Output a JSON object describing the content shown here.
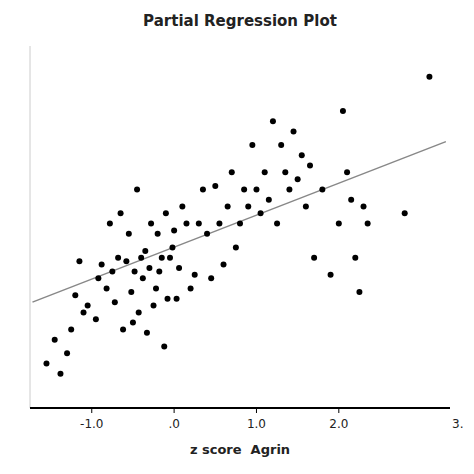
{
  "chart_data": {
    "type": "scatter",
    "title": "Partial Regression Plot",
    "x_label": "z score  Agrin",
    "xlim": [
      -1.75,
      3.35
    ],
    "ylim": [
      -4.8,
      5.8
    ],
    "xticks": [
      {
        "value": -1.0,
        "label": "-1.0"
      },
      {
        "value": 0.0,
        "label": ".0"
      },
      {
        "value": 1.0,
        "label": "1.0"
      },
      {
        "value": 2.0,
        "label": "2.0"
      }
    ],
    "tick_labels": "x",
    "grid": false,
    "annotations": [
      {
        "text": "3."
      }
    ],
    "series": [
      {
        "type": "scatter",
        "color": "#000000",
        "x": [
          -1.55,
          -1.45,
          -1.38,
          -1.3,
          -1.25,
          -1.2,
          -1.15,
          -1.1,
          -1.05,
          -0.95,
          -0.92,
          -0.88,
          -0.82,
          -0.78,
          -0.75,
          -0.72,
          -0.68,
          -0.65,
          -0.62,
          -0.58,
          -0.55,
          -0.52,
          -0.5,
          -0.48,
          -0.45,
          -0.43,
          -0.4,
          -0.38,
          -0.35,
          -0.33,
          -0.3,
          -0.28,
          -0.25,
          -0.22,
          -0.2,
          -0.18,
          -0.15,
          -0.12,
          -0.1,
          -0.08,
          -0.05,
          -0.02,
          0.0,
          0.03,
          0.06,
          0.1,
          0.15,
          0.2,
          0.25,
          0.3,
          0.35,
          0.4,
          0.45,
          0.5,
          0.55,
          0.6,
          0.65,
          0.7,
          0.75,
          0.8,
          0.85,
          0.9,
          0.95,
          1.0,
          1.05,
          1.1,
          1.15,
          1.2,
          1.25,
          1.3,
          1.35,
          1.4,
          1.45,
          1.5,
          1.55,
          1.6,
          1.65,
          1.7,
          1.8,
          1.9,
          2.0,
          2.05,
          2.1,
          2.15,
          2.2,
          2.25,
          2.3,
          2.35,
          2.8,
          3.1
        ],
        "values": [
          -3.5,
          -2.8,
          -3.8,
          -3.2,
          -2.5,
          -1.5,
          -0.5,
          -2.0,
          -1.8,
          -2.2,
          -1.0,
          -0.6,
          -1.3,
          0.6,
          -0.8,
          -1.7,
          -0.4,
          0.9,
          -2.5,
          -0.5,
          0.3,
          -1.4,
          -2.3,
          -0.8,
          1.6,
          -2.0,
          -0.4,
          -1.0,
          -0.2,
          -2.6,
          -0.7,
          0.6,
          -1.8,
          -1.3,
          0.3,
          -0.8,
          -0.4,
          -3.0,
          0.9,
          -1.6,
          -0.4,
          -0.1,
          0.4,
          -1.6,
          -0.7,
          1.1,
          0.6,
          -1.3,
          -0.9,
          0.6,
          1.6,
          0.3,
          -1.0,
          1.7,
          0.6,
          -0.6,
          1.1,
          2.1,
          -0.1,
          0.6,
          1.6,
          1.1,
          2.9,
          1.6,
          0.9,
          2.1,
          1.3,
          3.6,
          0.6,
          2.9,
          2.1,
          1.6,
          3.3,
          1.9,
          2.6,
          1.1,
          2.3,
          -0.4,
          1.6,
          -0.9,
          0.6,
          3.9,
          2.1,
          1.3,
          -0.4,
          -1.4,
          1.1,
          0.6,
          0.9,
          4.9
        ]
      },
      {
        "type": "line",
        "color": "#888888",
        "x": [
          -1.72,
          3.3
        ],
        "values": [
          -1.7,
          3.0
        ]
      }
    ]
  }
}
